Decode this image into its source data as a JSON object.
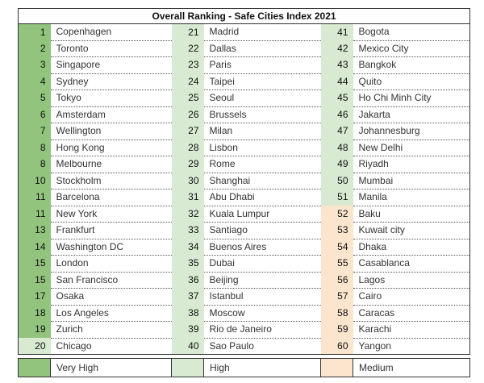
{
  "title": "Overall Ranking - Safe Cities Index 2021",
  "colors": {
    "very_high": "#93c47d",
    "high": "#d9ead3",
    "medium": "#fce5cd"
  },
  "rankings": [
    {
      "rank": 1,
      "city": "Copenhagen",
      "level": "very_high"
    },
    {
      "rank": 2,
      "city": "Toronto",
      "level": "very_high"
    },
    {
      "rank": 3,
      "city": "Singapore",
      "level": "very_high"
    },
    {
      "rank": 4,
      "city": "Sydney",
      "level": "very_high"
    },
    {
      "rank": 5,
      "city": "Tokyo",
      "level": "very_high"
    },
    {
      "rank": 6,
      "city": "Amsterdam",
      "level": "very_high"
    },
    {
      "rank": 7,
      "city": "Wellington",
      "level": "very_high"
    },
    {
      "rank": 8,
      "city": "Hong Kong",
      "level": "very_high"
    },
    {
      "rank": 8,
      "city": "Melbourne",
      "level": "very_high"
    },
    {
      "rank": 10,
      "city": "Stockholm",
      "level": "very_high"
    },
    {
      "rank": 11,
      "city": "Barcelona",
      "level": "very_high"
    },
    {
      "rank": 11,
      "city": "New York",
      "level": "very_high"
    },
    {
      "rank": 13,
      "city": "Frankfurt",
      "level": "very_high"
    },
    {
      "rank": 14,
      "city": "Washington DC",
      "level": "very_high"
    },
    {
      "rank": 15,
      "city": "London",
      "level": "very_high"
    },
    {
      "rank": 15,
      "city": "San Francisco",
      "level": "very_high"
    },
    {
      "rank": 17,
      "city": "Osaka",
      "level": "very_high"
    },
    {
      "rank": 18,
      "city": "Los Angeles",
      "level": "very_high"
    },
    {
      "rank": 19,
      "city": "Zurich",
      "level": "very_high"
    },
    {
      "rank": 20,
      "city": "Chicago",
      "level": "high"
    },
    {
      "rank": 21,
      "city": "Madrid",
      "level": "high"
    },
    {
      "rank": 22,
      "city": "Dallas",
      "level": "high"
    },
    {
      "rank": 23,
      "city": "Paris",
      "level": "high"
    },
    {
      "rank": 24,
      "city": "Taipei",
      "level": "high"
    },
    {
      "rank": 25,
      "city": "Seoul",
      "level": "high"
    },
    {
      "rank": 26,
      "city": "Brussels",
      "level": "high"
    },
    {
      "rank": 27,
      "city": "Milan",
      "level": "high"
    },
    {
      "rank": 28,
      "city": "Lisbon",
      "level": "high"
    },
    {
      "rank": 29,
      "city": "Rome",
      "level": "high"
    },
    {
      "rank": 30,
      "city": "Shanghai",
      "level": "high"
    },
    {
      "rank": 31,
      "city": "Abu Dhabi",
      "level": "high"
    },
    {
      "rank": 32,
      "city": "Kuala Lumpur",
      "level": "high"
    },
    {
      "rank": 33,
      "city": "Santiago",
      "level": "high"
    },
    {
      "rank": 34,
      "city": "Buenos Aires",
      "level": "high"
    },
    {
      "rank": 35,
      "city": "Dubai",
      "level": "high"
    },
    {
      "rank": 36,
      "city": "Beijing",
      "level": "high"
    },
    {
      "rank": 37,
      "city": "Istanbul",
      "level": "high"
    },
    {
      "rank": 38,
      "city": "Moscow",
      "level": "high"
    },
    {
      "rank": 39,
      "city": "Rio de Janeiro",
      "level": "high"
    },
    {
      "rank": 40,
      "city": "Sao Paulo",
      "level": "high"
    },
    {
      "rank": 41,
      "city": "Bogota",
      "level": "high"
    },
    {
      "rank": 42,
      "city": "Mexico City",
      "level": "high"
    },
    {
      "rank": 43,
      "city": "Bangkok",
      "level": "high"
    },
    {
      "rank": 44,
      "city": "Quito",
      "level": "high"
    },
    {
      "rank": 45,
      "city": "Ho Chi Minh City",
      "level": "high"
    },
    {
      "rank": 46,
      "city": "Jakarta",
      "level": "high"
    },
    {
      "rank": 47,
      "city": "Johannesburg",
      "level": "high"
    },
    {
      "rank": 48,
      "city": "New Delhi",
      "level": "high"
    },
    {
      "rank": 49,
      "city": "Riyadh",
      "level": "high"
    },
    {
      "rank": 50,
      "city": "Mumbai",
      "level": "high"
    },
    {
      "rank": 51,
      "city": "Manila",
      "level": "high"
    },
    {
      "rank": 52,
      "city": "Baku",
      "level": "medium"
    },
    {
      "rank": 53,
      "city": "Kuwait city",
      "level": "medium"
    },
    {
      "rank": 54,
      "city": "Dhaka",
      "level": "medium"
    },
    {
      "rank": 55,
      "city": "Casablanca",
      "level": "medium"
    },
    {
      "rank": 56,
      "city": "Lagos",
      "level": "medium"
    },
    {
      "rank": 57,
      "city": "Cairo",
      "level": "medium"
    },
    {
      "rank": 58,
      "city": "Caracas",
      "level": "medium"
    },
    {
      "rank": 59,
      "city": "Karachi",
      "level": "medium"
    },
    {
      "rank": 60,
      "city": "Yangon",
      "level": "medium"
    }
  ],
  "legend": [
    {
      "label": "Very High",
      "level": "very_high"
    },
    {
      "label": "High",
      "level": "high"
    },
    {
      "label": "Medium",
      "level": "medium"
    }
  ]
}
